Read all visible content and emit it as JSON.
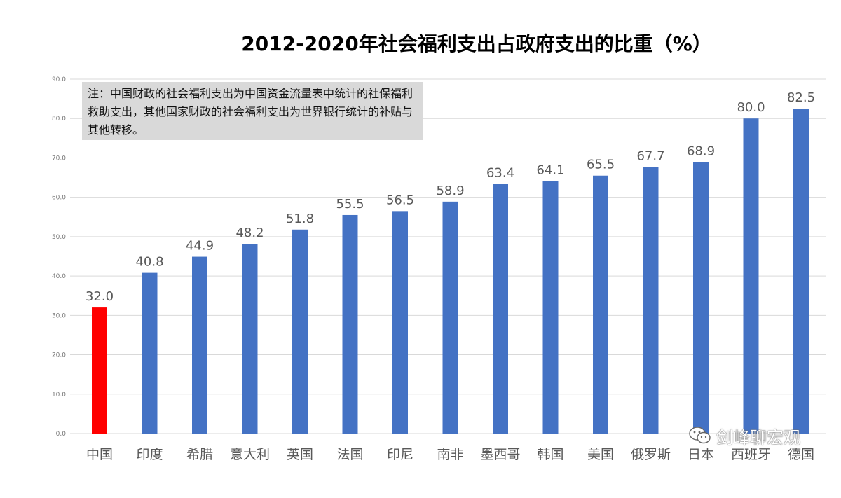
{
  "chart_data": {
    "type": "bar",
    "title": "2012-2020年社会福利支出占政府支出的比重（%）",
    "categories": [
      "中国",
      "印度",
      "希腊",
      "意大利",
      "英国",
      "法国",
      "印尼",
      "南非",
      "墨西哥",
      "韩国",
      "美国",
      "俄罗斯",
      "日本",
      "西班牙",
      "德国"
    ],
    "values": [
      32.0,
      40.8,
      44.9,
      48.2,
      51.8,
      55.5,
      56.5,
      58.9,
      63.4,
      64.1,
      65.5,
      67.7,
      68.9,
      80.0,
      82.5
    ],
    "data_labels": [
      "32.0",
      "40.8",
      "44.9",
      "48.2",
      "51.8",
      "55.5",
      "56.5",
      "58.9",
      "63.4",
      "64.1",
      "65.5",
      "67.7",
      "68.9",
      "80.0",
      "82.5"
    ],
    "highlight_index": 0,
    "ylim": [
      0,
      90
    ],
    "y_ticks": [
      0,
      10,
      20,
      30,
      40,
      50,
      60,
      70,
      80,
      90
    ],
    "y_tick_labels": [
      "0.0",
      "10.0",
      "20.0",
      "30.0",
      "40.0",
      "50.0",
      "60.0",
      "70.0",
      "80.0",
      "90.0"
    ],
    "xlabel": "",
    "ylabel": "",
    "grid": true,
    "legend": "none",
    "colors": {
      "bar": "#4472c4",
      "highlight": "#ff0000",
      "grid": "#d9d9d9",
      "label": "#595959"
    }
  },
  "note": "注：中国财政的社会福利支出为中国资金流量表中统计的社保福利救助支出，其他国家财政的社会福利支出为世界银行统计的补贴与其他转移。",
  "watermark": {
    "text": "剑峰聊宏观",
    "icon": "wechat-icon"
  }
}
